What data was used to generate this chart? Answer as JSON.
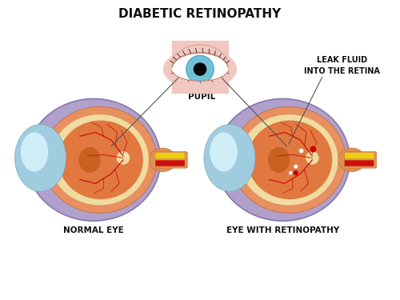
{
  "title": "DIABETIC RETINOPATHY",
  "title_fontsize": 11,
  "title_weight": "bold",
  "bg_color": "#ffffff",
  "label_normal": "NORMAL EYE",
  "label_retinopathy": "EYE WITH RETINOPATHY",
  "label_pupil": "PUPIL",
  "label_leak": "LEAK FLUID\nINTO THE RETINA",
  "label_fontsize": 7.5,
  "colors": {
    "eye_outer_fill": "#b0a0cc",
    "eye_outer_edge": "#8878aa",
    "eye_mid_fill": "#e89060",
    "eye_mid_edge": "#c07040",
    "eye_inner_cream": "#f0dca0",
    "eye_core": "#e07840",
    "eye_core2": "#d06830",
    "sclera_main": "#a0cce0",
    "sclera_hi": "#d0eef8",
    "sclera_edge": "#7aaac0",
    "macula": "#c86020",
    "optic_yellow": "#e8d010",
    "optic_red": "#cc1010",
    "optic_body": "#e09050",
    "vessels": "#cc1010",
    "lesion_red": "#cc0000",
    "lesion_white": "#ffffff",
    "pupil_bg": "#f0c8c0",
    "pupil_iris": "#70c0d8",
    "pupil_iris_edge": "#3090b0",
    "pupil_dark": "#080808",
    "eyelid": "#c08070",
    "eyelash": "#443333",
    "line_color": "#555555",
    "text_color": "#111111"
  }
}
